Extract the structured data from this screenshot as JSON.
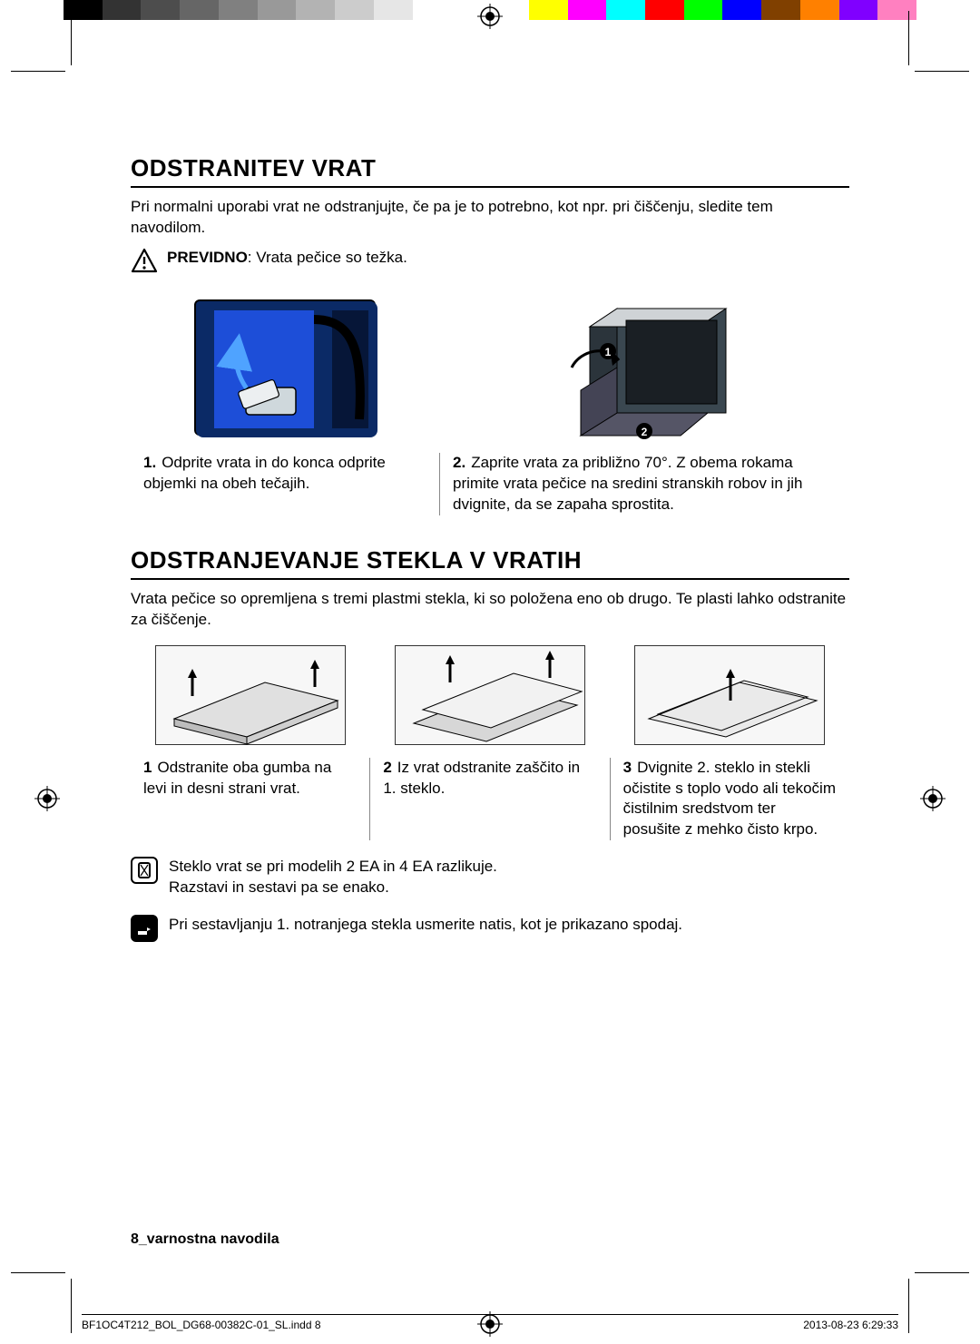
{
  "colorbar": [
    "#000000",
    "#333333",
    "#4d4d4d",
    "#666666",
    "#808080",
    "#999999",
    "#b3b3b3",
    "#cccccc",
    "#e6e6e6",
    "#ffffff",
    "#ffffff",
    "#ffffff",
    "#ffff00",
    "#ff00ff",
    "#00ffff",
    "#ff0000",
    "#00ff00",
    "#0000ff",
    "#804000",
    "#ff8000",
    "#8000ff",
    "#ff80c0"
  ],
  "section1": {
    "title": "ODSTRANITEV VRAT",
    "intro": "Pri normalni uporabi vrat ne odstranjujte, če pa je to potrebno, kot npr. pri čiščenju, sledite tem navodilom.",
    "caution_label": "PREVIDNO",
    "caution_text": ": Vrata pečice so težka.",
    "step1_num": "1.",
    "step1_text": "Odprite vrata in do konca odprite objemki na obeh tečajih.",
    "step2_num": "2.",
    "step2_text": "Zaprite vrata za približno 70°. Z obema rokama primite vrata pečice na sredini stranskih robov in jih dvignite, da se zapaha sprostita."
  },
  "section2": {
    "title": "ODSTRANJEVANJE STEKLA V VRATIH",
    "intro": "Vrata pečice so opremljena s tremi plastmi stekla, ki so položena eno ob drugo. Te plasti lahko odstranite za čiščenje.",
    "step1_num": "1",
    "step1_text": "Odstranite oba gumba na levi in desni strani vrat.",
    "step2_num": "2",
    "step2_text": "Iz vrat odstranite zaščito in 1. steklo.",
    "step3_num": "3",
    "step3_text": "Dvignite 2. steklo in stekli očistite s toplo vodo ali tekočim čistilnim sredstvom ter posušite z mehko čisto krpo.",
    "note1": "Steklo vrat se pri modelih 2 EA in 4 EA razlikuje.\nRazstavi in sestavi pa se enako.",
    "note2": "Pri sestavljanju 1. notranjega stekla usmerite natis, kot je prikazano spodaj."
  },
  "footer": "8_varnostna navodila",
  "slug_left": "BF1OC4T212_BOL_DG68-00382C-01_SL.indd   8",
  "slug_right": "2013-08-23    6:29:33"
}
